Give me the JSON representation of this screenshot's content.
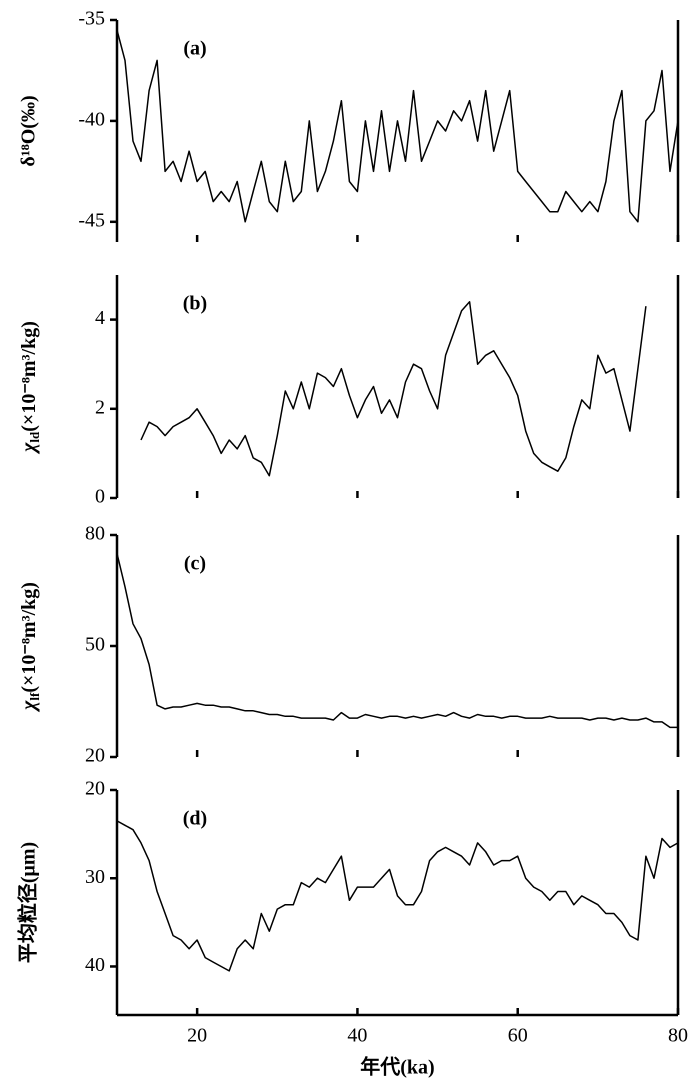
{
  "chart_data": [
    {
      "type": "line",
      "label": "(a)",
      "y_label": "δ¹⁸O(‰)",
      "color": "#000000",
      "xlim": [
        10,
        80
      ],
      "xticks": [
        20,
        40,
        60,
        80
      ],
      "ylim": [
        -46,
        -35
      ],
      "yticks": [
        -45,
        -40,
        -35
      ],
      "x": [
        10,
        11,
        12,
        13,
        14,
        15,
        16,
        17,
        18,
        19,
        20,
        21,
        22,
        23,
        24,
        25,
        26,
        27,
        28,
        29,
        30,
        31,
        32,
        33,
        34,
        35,
        36,
        37,
        38,
        39,
        40,
        41,
        42,
        43,
        44,
        45,
        46,
        47,
        48,
        49,
        50,
        51,
        52,
        53,
        54,
        55,
        56,
        57,
        58,
        59,
        60,
        61,
        62,
        63,
        64,
        65,
        66,
        67,
        68,
        69,
        70,
        71,
        72,
        73,
        74,
        75,
        76,
        77,
        78,
        79,
        80
      ],
      "values": [
        -35.5,
        -37,
        -41,
        -42,
        -38.5,
        -37,
        -42.5,
        -42,
        -43,
        -41.5,
        -43,
        -42.5,
        -44,
        -43.5,
        -44,
        -43,
        -45,
        -43.5,
        -42,
        -44,
        -44.5,
        -42,
        -44,
        -43.5,
        -40,
        -43.5,
        -42.5,
        -41,
        -39,
        -43,
        -43.5,
        -40,
        -42.5,
        -39.5,
        -42.5,
        -40,
        -42,
        -38.5,
        -42,
        -41,
        -40,
        -40.5,
        -39.5,
        -40,
        -39,
        -41,
        -38.5,
        -41.5,
        -40,
        -38.5,
        -42.5,
        -43,
        -43.5,
        -44,
        -44.5,
        -44.5,
        -43.5,
        -44,
        -44.5,
        -44,
        -44.5,
        -43,
        -40,
        -38.5,
        -44.5,
        -45,
        -40,
        -39.5,
        -37.5,
        -42.5,
        -40
      ]
    },
    {
      "type": "line",
      "label": "(b)",
      "y_label": {
        "main": "χ",
        "sub": "ld",
        "rest": "(×10⁻⁸m³/kg)"
      },
      "color": "#000000",
      "xlim": [
        10,
        80
      ],
      "xticks": [
        20,
        40,
        60,
        80
      ],
      "ylim": [
        0,
        5
      ],
      "yticks": [
        0,
        2,
        4
      ],
      "x": [
        10,
        11,
        12,
        13,
        14,
        15,
        16,
        17,
        18,
        19,
        20,
        21,
        22,
        23,
        24,
        25,
        26,
        27,
        28,
        29,
        30,
        31,
        32,
        33,
        34,
        35,
        36,
        37,
        38,
        39,
        40,
        41,
        42,
        43,
        44,
        45,
        46,
        47,
        48,
        49,
        50,
        51,
        52,
        53,
        54,
        55,
        56,
        57,
        58,
        59,
        60,
        61,
        62,
        63,
        64,
        65,
        66,
        67,
        68,
        69,
        70,
        71,
        72,
        73,
        74,
        75,
        76,
        77,
        78,
        79,
        80
      ],
      "values": [
        null,
        null,
        null,
        1.3,
        1.7,
        1.6,
        1.4,
        1.6,
        1.7,
        1.8,
        2.0,
        1.7,
        1.4,
        1.0,
        1.3,
        1.1,
        1.4,
        0.9,
        0.8,
        0.5,
        1.4,
        2.4,
        2.0,
        2.6,
        2.0,
        2.8,
        2.7,
        2.5,
        2.9,
        2.3,
        1.8,
        2.2,
        2.5,
        1.9,
        2.2,
        1.8,
        2.6,
        3.0,
        2.9,
        2.4,
        2.0,
        3.2,
        3.7,
        4.2,
        4.4,
        3.0,
        3.2,
        3.3,
        3.0,
        2.7,
        2.3,
        1.5,
        1.0,
        0.8,
        0.7,
        0.6,
        0.9,
        1.6,
        2.2,
        2.0,
        3.2,
        2.8,
        2.9,
        2.2,
        1.5,
        2.9,
        4.3,
        null,
        null,
        null,
        null
      ]
    },
    {
      "type": "line",
      "label": "(c)",
      "y_label": {
        "main": "χ",
        "sub": "lf",
        "rest": "(×10⁻⁸m³/kg)"
      },
      "color": "#000000",
      "xlim": [
        10,
        80
      ],
      "xticks": [
        20,
        40,
        60,
        80
      ],
      "ylim": [
        20,
        80
      ],
      "yticks": [
        20,
        50,
        80
      ],
      "x": [
        10,
        11,
        12,
        13,
        14,
        15,
        16,
        17,
        18,
        19,
        20,
        21,
        22,
        23,
        24,
        25,
        26,
        27,
        28,
        29,
        30,
        31,
        32,
        33,
        34,
        35,
        36,
        37,
        38,
        39,
        40,
        41,
        42,
        43,
        44,
        45,
        46,
        47,
        48,
        49,
        50,
        51,
        52,
        53,
        54,
        55,
        56,
        57,
        58,
        59,
        60,
        61,
        62,
        63,
        64,
        65,
        66,
        67,
        68,
        69,
        70,
        71,
        72,
        73,
        74,
        75,
        76,
        77,
        78,
        79,
        80
      ],
      "values": [
        75,
        66,
        56,
        52,
        45,
        34,
        33,
        33.5,
        33.5,
        34,
        34.5,
        34,
        34,
        33.5,
        33.5,
        33,
        32.5,
        32.5,
        32,
        31.5,
        31.5,
        31,
        31,
        30.5,
        30.5,
        30.5,
        30.5,
        30,
        32,
        30.5,
        30.5,
        31.5,
        31,
        30.5,
        31,
        31,
        30.5,
        31,
        30.5,
        31,
        31.5,
        31,
        32,
        31,
        30.5,
        31.5,
        31,
        31,
        30.5,
        31,
        31,
        30.5,
        30.5,
        30.5,
        31,
        30.5,
        30.5,
        30.5,
        30.5,
        30,
        30.5,
        30.5,
        30,
        30.5,
        30,
        30,
        30.5,
        29.5,
        29.5,
        28,
        28
      ]
    },
    {
      "type": "line",
      "label": "(d)",
      "y_label": "平均粒径(μm)",
      "x_label": "年代(ka)",
      "color": "#000000",
      "xlim": [
        10,
        80
      ],
      "xticks": [
        20,
        40,
        60,
        80
      ],
      "ylim": [
        45.5,
        20
      ],
      "yticks": [
        20,
        30,
        40
      ],
      "x": [
        10,
        11,
        12,
        13,
        14,
        15,
        16,
        17,
        18,
        19,
        20,
        21,
        22,
        23,
        24,
        25,
        26,
        27,
        28,
        29,
        30,
        31,
        32,
        33,
        34,
        35,
        36,
        37,
        38,
        39,
        40,
        41,
        42,
        43,
        44,
        45,
        46,
        47,
        48,
        49,
        50,
        51,
        52,
        53,
        54,
        55,
        56,
        57,
        58,
        59,
        60,
        61,
        62,
        63,
        64,
        65,
        66,
        67,
        68,
        69,
        70,
        71,
        72,
        73,
        74,
        75,
        76,
        77,
        78,
        79,
        80
      ],
      "values": [
        23.5,
        24,
        24.5,
        26,
        28,
        31.5,
        34,
        36.5,
        37,
        38,
        37,
        39,
        39.5,
        40,
        40.5,
        38,
        37,
        38,
        34,
        36,
        33.5,
        33,
        33,
        30.5,
        31,
        30,
        30.5,
        29,
        27.5,
        32.5,
        31,
        31,
        31,
        30,
        29,
        32,
        33,
        33,
        31.5,
        28,
        27,
        26.5,
        27,
        27.5,
        28.5,
        26,
        27,
        28.5,
        28,
        28,
        27.5,
        30,
        31,
        31.5,
        32.5,
        31.5,
        31.5,
        33,
        32,
        32.5,
        33,
        34,
        34,
        35,
        36.5,
        37,
        27.5,
        30,
        25.5,
        26.5,
        26
      ]
    }
  ]
}
